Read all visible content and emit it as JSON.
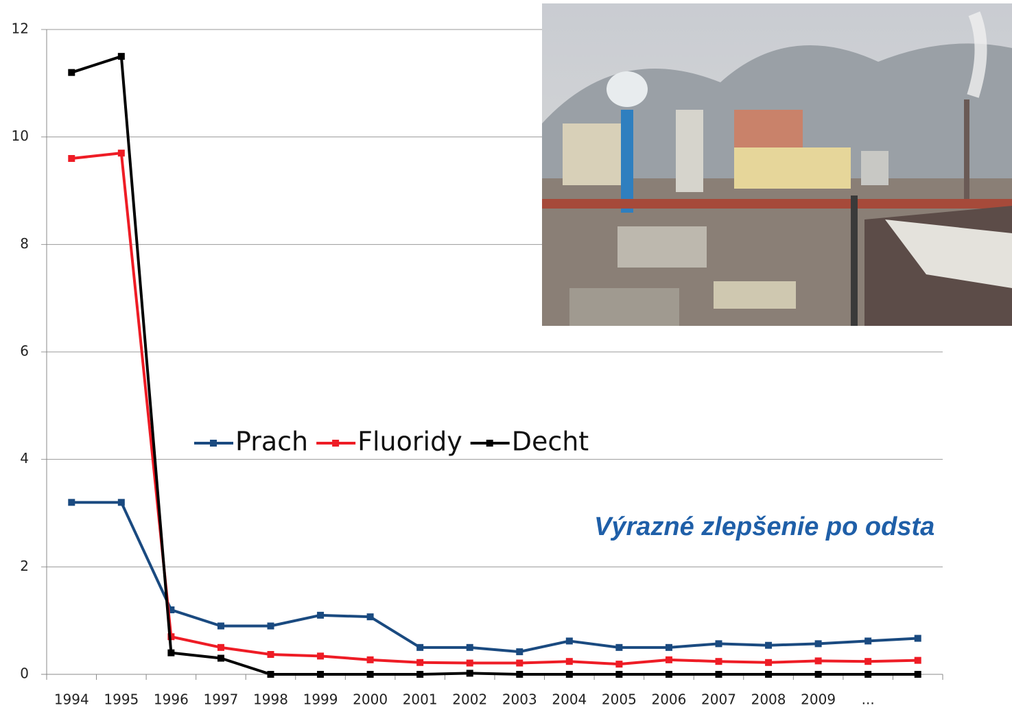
{
  "chart_data": {
    "type": "line",
    "categories": [
      "1994",
      "1995",
      "1996",
      "1997",
      "1998",
      "1999",
      "2000",
      "2001",
      "2002",
      "2003",
      "2004",
      "2005",
      "2006",
      "2007",
      "2008",
      "2009",
      "...",
      null
    ],
    "series": [
      {
        "name": "Prach",
        "color": "#1a4a80",
        "values": [
          3.2,
          3.2,
          1.2,
          0.9,
          0.9,
          1.1,
          1.07,
          0.5,
          0.5,
          0.42,
          0.62,
          0.5,
          0.5,
          0.57,
          0.54,
          0.57,
          0.62,
          0.67
        ]
      },
      {
        "name": "Fluoridy",
        "color": "#ee1c25",
        "values": [
          9.6,
          9.7,
          0.7,
          0.5,
          0.37,
          0.34,
          0.27,
          0.22,
          0.21,
          0.21,
          0.24,
          0.19,
          0.27,
          0.24,
          0.22,
          0.25,
          0.24,
          0.26
        ]
      },
      {
        "name": "Decht",
        "color": "#000000",
        "values": [
          11.2,
          11.5,
          0.4,
          0.3,
          0,
          0,
          0,
          0,
          0.02,
          0,
          0,
          0,
          0,
          0,
          0,
          0,
          0,
          0
        ]
      }
    ],
    "ylim": [
      0,
      12
    ],
    "yticks": [
      0,
      2,
      4,
      6,
      8,
      10,
      12
    ],
    "grid": true,
    "annotation": "Výrazné zlepšenie po odsta"
  }
}
